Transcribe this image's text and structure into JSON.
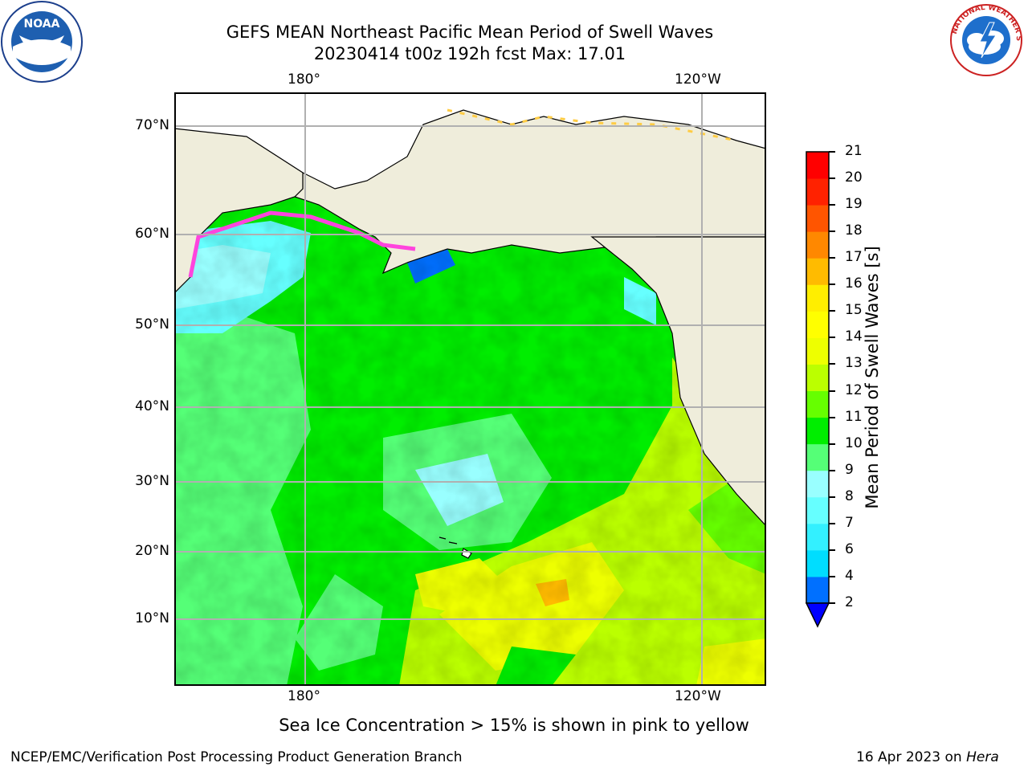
{
  "header": {
    "title_line1": "GEFS MEAN Northeast Pacific Mean Period of Swell Waves",
    "title_line2": "20230414 t00z 192h fcst   Max: 17.01"
  },
  "logos": {
    "left": {
      "icon": "noaa-logo",
      "text": "NOAA"
    },
    "right": {
      "icon": "national-weather-service-logo",
      "text": "NATIONAL WEATHER SERVICE"
    }
  },
  "map": {
    "lon_labels": [
      "180°",
      "120°W"
    ],
    "lat_labels": [
      "70°N",
      "60°N",
      "50°N",
      "40°N",
      "30°N",
      "20°N",
      "10°N"
    ],
    "land_color": "#efeddb",
    "grid_color": "#b0b0b0"
  },
  "colorbar": {
    "label": "Mean Period of Swell Waves [s]",
    "ticks": [
      "2",
      "4",
      "6",
      "7",
      "8",
      "9",
      "10",
      "11",
      "12",
      "13",
      "14",
      "15",
      "16",
      "17",
      "18",
      "19",
      "20",
      "21"
    ],
    "colors": [
      "#0000ff",
      "#0070ff",
      "#00ddff",
      "#33f0ff",
      "#66ffff",
      "#99ffff",
      "#55ff77",
      "#00ee00",
      "#66ff00",
      "#bbff00",
      "#eeff00",
      "#ffff00",
      "#ffee00",
      "#ffbb00",
      "#ff8800",
      "#ff5500",
      "#ff2200",
      "#ff0000"
    ]
  },
  "footer": {
    "note": "Sea Ice Concentration > 15% is shown in pink to yellow",
    "credit": "NCEP/EMC/Verification Post Processing Product Generation Branch",
    "date": "16 Apr 2023 on",
    "host": "Hera"
  }
}
